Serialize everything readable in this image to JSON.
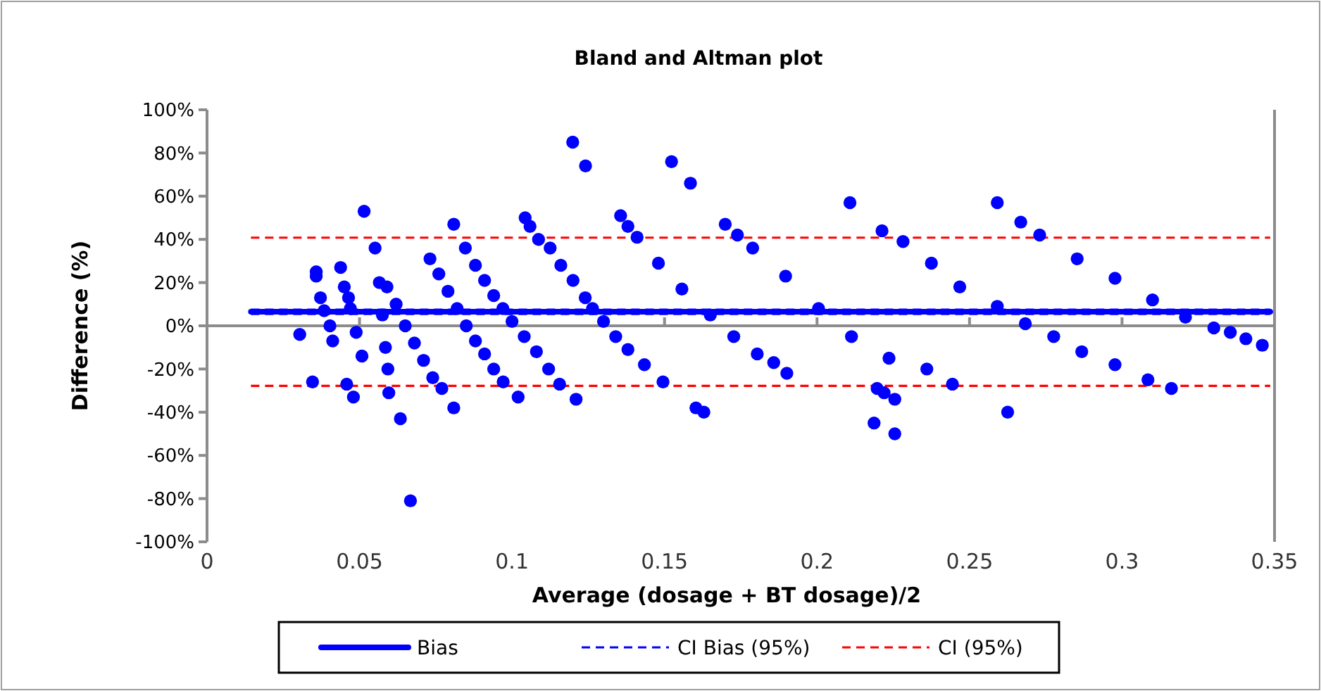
{
  "chart_data": {
    "type": "scatter",
    "title": "Bland and Altman plot",
    "xlabel": "Average (dosage + BT dosage)/2",
    "ylabel": "Difference (%)",
    "xlim": [
      0,
      0.35
    ],
    "ylim": [
      -100,
      100
    ],
    "xticks": [
      0,
      0.05,
      0.1,
      0.15,
      0.2,
      0.25,
      0.3,
      0.35
    ],
    "yticks": [
      {
        "value": -100,
        "label": "-100%"
      },
      {
        "value": -80,
        "label": "-80%"
      },
      {
        "value": -60,
        "label": "-60%"
      },
      {
        "value": -40,
        "label": "-40%"
      },
      {
        "value": -20,
        "label": "-20%"
      },
      {
        "value": 0,
        "label": "0%"
      },
      {
        "value": 20,
        "label": "20%"
      },
      {
        "value": 40,
        "label": "40%"
      },
      {
        "value": 60,
        "label": "60%"
      },
      {
        "value": 80,
        "label": "80%"
      },
      {
        "value": 100,
        "label": "100%"
      }
    ],
    "legend": "bottom",
    "marker": "circle",
    "series": [
      {
        "color": "#0000ff",
        "x": [
          0.0304,
          0.0346,
          0.0358,
          0.0358,
          0.0372,
          0.0384,
          0.0403,
          0.0412,
          0.0438,
          0.045,
          0.0464,
          0.047,
          0.0489,
          0.0508,
          0.0458,
          0.048,
          0.0515,
          0.0551,
          0.0565,
          0.0575,
          0.0585,
          0.0593,
          0.0596,
          0.059,
          0.062,
          0.065,
          0.068,
          0.071,
          0.074,
          0.077,
          0.0809,
          0.0634,
          0.0667,
          0.0809,
          0.0731,
          0.076,
          0.079,
          0.082,
          0.085,
          0.088,
          0.091,
          0.094,
          0.0971,
          0.0847,
          0.088,
          0.091,
          0.094,
          0.097,
          0.1,
          0.104,
          0.108,
          0.112,
          0.1156,
          0.121,
          0.102,
          0.1043,
          0.1059,
          0.1087,
          0.1125,
          0.116,
          0.12,
          0.124,
          0.1264,
          0.13,
          0.134,
          0.138,
          0.1434,
          0.1199,
          0.1241,
          0.1523,
          0.1585,
          0.1495,
          0.1603,
          0.1629,
          0.1356,
          0.138,
          0.141,
          0.148,
          0.1557,
          0.165,
          0.1727,
          0.1804,
          0.1858,
          0.1901,
          0.1699,
          0.1739,
          0.1789,
          0.1897,
          0.2005,
          0.2113,
          0.2236,
          0.236,
          0.2444,
          0.2197,
          0.222,
          0.2255,
          0.2108,
          0.2187,
          0.2255,
          0.2213,
          0.2282,
          0.2375,
          0.2468,
          0.2591,
          0.2683,
          0.2776,
          0.2868,
          0.2977,
          0.3085,
          0.3162,
          0.2591,
          0.2668,
          0.2625,
          0.273,
          0.2853,
          0.2977,
          0.31,
          0.3208,
          0.3301,
          0.3355,
          0.3406,
          0.346
        ],
        "values": [
          -4,
          -26,
          25,
          23,
          13,
          7,
          0,
          -7,
          27,
          18,
          13,
          8,
          -3,
          -14,
          -27,
          -33,
          53,
          36,
          20,
          5,
          -10,
          -20,
          -31,
          18,
          10,
          0,
          -8,
          -16,
          -24,
          -29,
          -38,
          -43,
          -81,
          47,
          31,
          24,
          16,
          8,
          0,
          -7,
          -13,
          -20,
          -26,
          36,
          28,
          21,
          14,
          8,
          2,
          -5,
          -12,
          -20,
          -27,
          -34,
          -33,
          50,
          46,
          40,
          36,
          28,
          21,
          13,
          8,
          2,
          -5,
          -11,
          -18,
          85,
          74,
          76,
          66,
          -26,
          -38,
          -40,
          51,
          46,
          41,
          29,
          17,
          5,
          -5,
          -13,
          -17,
          -22,
          47,
          42,
          36,
          23,
          8,
          -5,
          -15,
          -20,
          -27,
          -29,
          -31,
          -34,
          57,
          -45,
          -50,
          44,
          39,
          29,
          18,
          9,
          1,
          -5,
          -12,
          -18,
          -25,
          -29,
          57,
          48,
          -40,
          42,
          31,
          22,
          12,
          4,
          -1,
          -3,
          -6,
          -9
        ]
      },
      {
        "type": "line",
        "name": "Bias",
        "color": "#0000ff",
        "line_style": "solid",
        "marker": "none",
        "x": [
          0.0144,
          0.3486
        ],
        "values": [
          6.5,
          6.5
        ]
      },
      {
        "type": "line",
        "name": "CI Bias (95%)",
        "color": "#0000ff",
        "line_style": "dashed",
        "marker": "none",
        "x": [
          0.0144,
          0.3486
        ],
        "values": [
          5.5,
          5.5
        ]
      },
      {
        "type": "line",
        "color": "#0000ff",
        "line_style": "dashed",
        "marker": "none",
        "x": [
          0.0144,
          0.3486
        ],
        "values": [
          7.5,
          7.5
        ]
      },
      {
        "type": "line",
        "name": "CI (95%)",
        "color": "#ff0000",
        "line_style": "dashed",
        "marker": "none",
        "x": [
          0.0144,
          0.3486
        ],
        "values": [
          40.8,
          40.8
        ]
      },
      {
        "type": "line",
        "color": "#ff0000",
        "line_style": "dashed",
        "marker": "none",
        "x": [
          0.0144,
          0.3486
        ],
        "values": [
          -27.8,
          -27.8
        ]
      }
    ]
  }
}
